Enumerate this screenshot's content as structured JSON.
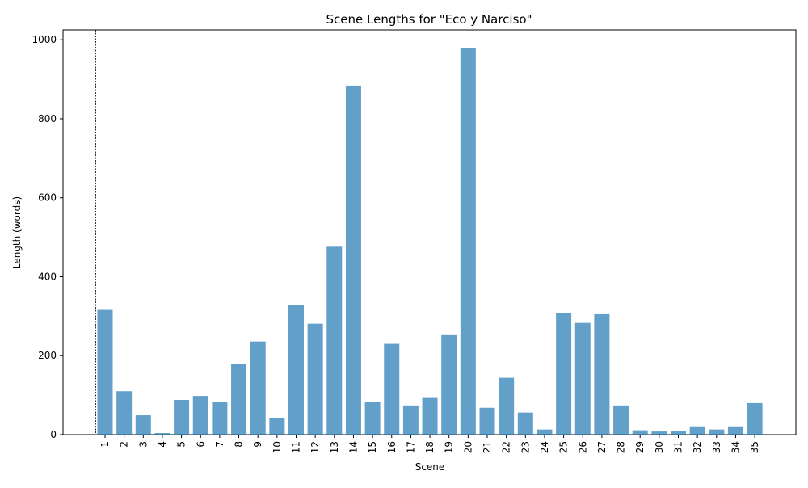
{
  "chart_data": {
    "type": "bar",
    "title": "Scene Lengths for \"Eco y Narciso\"",
    "xlabel": "Scene",
    "ylabel": "Length (words)",
    "categories": [
      "1",
      "2",
      "3",
      "4",
      "5",
      "6",
      "7",
      "8",
      "9",
      "10",
      "11",
      "12",
      "13",
      "14",
      "15",
      "16",
      "17",
      "18",
      "19",
      "20",
      "21",
      "22",
      "23",
      "24",
      "25",
      "26",
      "27",
      "28",
      "29",
      "30",
      "31",
      "32",
      "33",
      "34",
      "35"
    ],
    "values": [
      316,
      110,
      49,
      4,
      88,
      98,
      82,
      178,
      236,
      43,
      329,
      281,
      476,
      884,
      82,
      230,
      74,
      95,
      252,
      978,
      68,
      144,
      56,
      13,
      308,
      283,
      305,
      74,
      11,
      8,
      10,
      21,
      13,
      21,
      80
    ],
    "ylim": [
      0,
      1025
    ],
    "yticks": [
      0,
      200,
      400,
      600,
      800,
      1000
    ],
    "bar_color": "#1f77b4",
    "bar_opacity": 0.7,
    "grid": false,
    "vertical_reference_line": {
      "style": "dashed",
      "color": "#000000"
    }
  }
}
